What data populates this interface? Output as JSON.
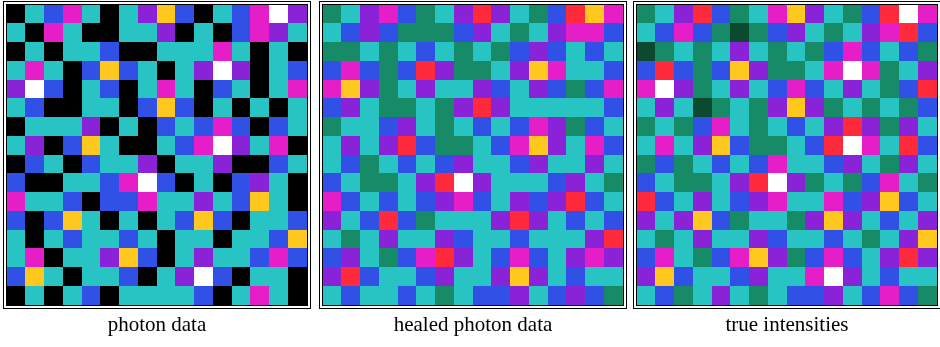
{
  "chart_data": [
    {
      "type": "heatmap",
      "title": "photon data",
      "tick_labels": false,
      "cells": [
        [
          0,
          3,
          4,
          6,
          3,
          0,
          3,
          5,
          8,
          4,
          0,
          3,
          4,
          6,
          9,
          5
        ],
        [
          3,
          0,
          6,
          3,
          0,
          0,
          3,
          3,
          5,
          0,
          3,
          0,
          4,
          6,
          5,
          3
        ],
        [
          0,
          3,
          0,
          3,
          3,
          4,
          0,
          0,
          3,
          3,
          3,
          6,
          3,
          0,
          3,
          0
        ],
        [
          3,
          6,
          3,
          0,
          4,
          8,
          4,
          3,
          0,
          3,
          5,
          9,
          5,
          0,
          3,
          4
        ],
        [
          5,
          9,
          4,
          0,
          3,
          4,
          0,
          3,
          6,
          3,
          0,
          4,
          3,
          0,
          3,
          6
        ],
        [
          3,
          4,
          0,
          0,
          3,
          3,
          0,
          4,
          8,
          4,
          0,
          3,
          0,
          3,
          0,
          3
        ],
        [
          0,
          3,
          3,
          3,
          5,
          0,
          3,
          0,
          4,
          3,
          4,
          6,
          4,
          0,
          4,
          3
        ],
        [
          3,
          5,
          0,
          4,
          8,
          3,
          0,
          0,
          3,
          4,
          6,
          9,
          5,
          3,
          6,
          0
        ],
        [
          0,
          4,
          3,
          0,
          4,
          3,
          3,
          5,
          0,
          3,
          3,
          5,
          0,
          0,
          4,
          3
        ],
        [
          4,
          0,
          0,
          3,
          3,
          4,
          6,
          9,
          4,
          0,
          3,
          0,
          4,
          5,
          3,
          0
        ],
        [
          6,
          3,
          3,
          4,
          0,
          4,
          4,
          6,
          3,
          3,
          5,
          3,
          4,
          8,
          3,
          0
        ],
        [
          4,
          0,
          4,
          8,
          3,
          0,
          3,
          0,
          3,
          4,
          8,
          4,
          0,
          3,
          3,
          4
        ],
        [
          3,
          0,
          3,
          4,
          3,
          3,
          4,
          3,
          0,
          3,
          3,
          0,
          3,
          3,
          4,
          8
        ],
        [
          3,
          6,
          0,
          3,
          3,
          5,
          8,
          4,
          0,
          3,
          5,
          3,
          3,
          4,
          6,
          4
        ],
        [
          4,
          8,
          3,
          0,
          3,
          3,
          4,
          0,
          3,
          5,
          9,
          4,
          0,
          3,
          3,
          0
        ],
        [
          0,
          3,
          0,
          3,
          4,
          0,
          3,
          3,
          3,
          3,
          4,
          0,
          3,
          6,
          3,
          0
        ]
      ]
    },
    {
      "type": "heatmap",
      "title": "healed photon data",
      "tick_labels": false,
      "cells": [
        [
          2,
          3,
          5,
          6,
          4,
          2,
          3,
          5,
          7,
          5,
          3,
          2,
          4,
          7,
          8,
          6
        ],
        [
          3,
          4,
          5,
          4,
          2,
          2,
          2,
          4,
          5,
          3,
          2,
          3,
          5,
          6,
          6,
          4
        ],
        [
          2,
          2,
          3,
          2,
          3,
          4,
          3,
          2,
          3,
          2,
          4,
          5,
          4,
          3,
          4,
          3
        ],
        [
          4,
          6,
          4,
          2,
          4,
          7,
          5,
          2,
          2,
          3,
          5,
          8,
          6,
          3,
          3,
          4
        ],
        [
          6,
          8,
          5,
          2,
          3,
          5,
          3,
          3,
          5,
          4,
          3,
          5,
          4,
          2,
          4,
          6
        ],
        [
          4,
          5,
          3,
          2,
          2,
          3,
          2,
          5,
          7,
          5,
          3,
          3,
          3,
          3,
          3,
          4
        ],
        [
          2,
          3,
          3,
          4,
          5,
          3,
          2,
          3,
          4,
          3,
          4,
          6,
          5,
          2,
          4,
          3
        ],
        [
          3,
          5,
          3,
          5,
          7,
          4,
          2,
          2,
          3,
          4,
          6,
          8,
          5,
          3,
          6,
          4
        ],
        [
          3,
          4,
          2,
          3,
          4,
          3,
          4,
          5,
          3,
          3,
          4,
          5,
          3,
          3,
          5,
          3
        ],
        [
          4,
          3,
          2,
          2,
          3,
          5,
          7,
          9,
          5,
          3,
          3,
          3,
          4,
          5,
          3,
          2
        ],
        [
          6,
          4,
          3,
          4,
          3,
          4,
          5,
          6,
          4,
          3,
          5,
          4,
          5,
          7,
          4,
          3
        ],
        [
          5,
          3,
          4,
          7,
          4,
          2,
          3,
          3,
          3,
          5,
          7,
          5,
          3,
          4,
          3,
          4
        ],
        [
          3,
          2,
          3,
          5,
          3,
          3,
          5,
          4,
          3,
          3,
          4,
          3,
          3,
          3,
          5,
          7
        ],
        [
          4,
          5,
          3,
          2,
          4,
          6,
          7,
          5,
          3,
          4,
          6,
          4,
          3,
          5,
          6,
          5
        ],
        [
          5,
          7,
          4,
          3,
          3,
          4,
          5,
          3,
          3,
          5,
          8,
          5,
          3,
          4,
          3,
          3
        ],
        [
          3,
          4,
          3,
          3,
          4,
          3,
          2,
          3,
          4,
          4,
          5,
          3,
          4,
          5,
          4,
          2
        ]
      ]
    },
    {
      "type": "heatmap",
      "title": "true intensities",
      "tick_labels": false,
      "cells": [
        [
          2,
          3,
          5,
          7,
          4,
          2,
          3,
          6,
          8,
          5,
          3,
          2,
          4,
          7,
          9,
          6
        ],
        [
          3,
          4,
          6,
          4,
          2,
          1,
          2,
          4,
          5,
          3,
          2,
          3,
          5,
          6,
          7,
          4
        ],
        [
          1,
          2,
          3,
          2,
          3,
          5,
          3,
          2,
          3,
          2,
          4,
          6,
          4,
          3,
          4,
          2
        ],
        [
          4,
          7,
          4,
          2,
          4,
          8,
          5,
          2,
          2,
          3,
          6,
          9,
          6,
          2,
          3,
          5
        ],
        [
          6,
          9,
          5,
          2,
          3,
          5,
          3,
          4,
          6,
          4,
          3,
          5,
          3,
          2,
          4,
          7
        ],
        [
          3,
          5,
          3,
          1,
          2,
          3,
          2,
          5,
          8,
          5,
          2,
          3,
          2,
          3,
          2,
          4
        ],
        [
          2,
          3,
          2,
          4,
          6,
          3,
          2,
          3,
          4,
          3,
          5,
          7,
          5,
          2,
          5,
          3
        ],
        [
          3,
          6,
          3,
          5,
          8,
          4,
          2,
          2,
          3,
          4,
          7,
          9,
          6,
          3,
          7,
          4
        ],
        [
          2,
          4,
          2,
          3,
          4,
          3,
          4,
          6,
          3,
          3,
          4,
          5,
          3,
          2,
          5,
          3
        ],
        [
          4,
          3,
          2,
          2,
          3,
          5,
          7,
          9,
          5,
          2,
          3,
          2,
          4,
          6,
          3,
          2
        ],
        [
          7,
          4,
          3,
          5,
          3,
          4,
          5,
          6,
          3,
          3,
          6,
          4,
          5,
          8,
          4,
          3
        ],
        [
          5,
          3,
          5,
          8,
          4,
          2,
          3,
          3,
          2,
          5,
          8,
          5,
          3,
          4,
          3,
          5
        ],
        [
          3,
          2,
          3,
          5,
          3,
          3,
          5,
          4,
          3,
          3,
          4,
          3,
          2,
          3,
          5,
          8
        ],
        [
          4,
          6,
          3,
          2,
          4,
          6,
          8,
          5,
          2,
          4,
          6,
          4,
          3,
          5,
          7,
          5
        ],
        [
          5,
          8,
          4,
          3,
          3,
          4,
          5,
          3,
          3,
          6,
          9,
          5,
          3,
          4,
          3,
          3
        ],
        [
          3,
          4,
          2,
          3,
          5,
          3,
          2,
          3,
          4,
          4,
          5,
          3,
          4,
          6,
          4,
          2
        ]
      ]
    }
  ]
}
